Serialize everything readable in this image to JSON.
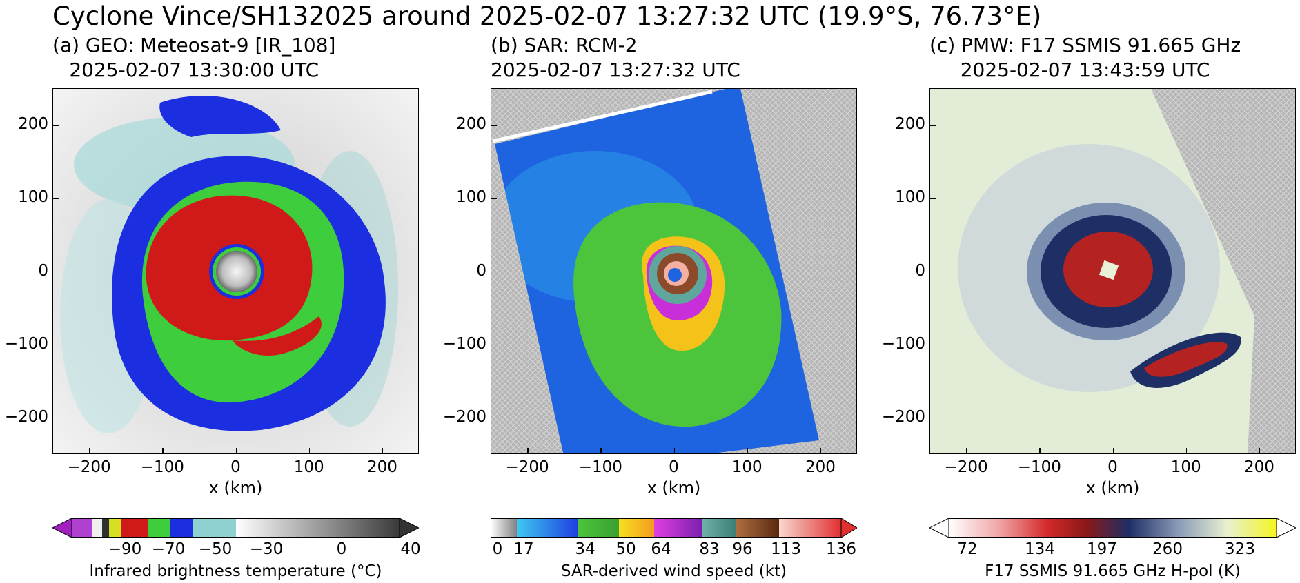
{
  "title": "Cyclone Vince/SH132025 around 2025-02-07 13:27:32 UTC (19.9°S, 76.73°E)",
  "panels": [
    {
      "label_line1": "(a) GEO: Meteosat-9 [IR_108]",
      "label_line2": "2025-02-07 13:30:00 UTC",
      "xlabel": "x (km)",
      "cbar_label": "Infrared brightness temperature (°C)",
      "cbar_ticks": [
        "−90",
        "−70",
        "−50",
        "−30",
        "0",
        "40"
      ]
    },
    {
      "label_line1": "(b) SAR: RCM-2",
      "label_line2": "2025-02-07 13:27:32 UTC",
      "xlabel": "x (km)",
      "cbar_label": "SAR-derived wind speed (kt)",
      "cbar_ticks": [
        "0",
        "17",
        "34",
        "50",
        "64",
        "83",
        "96",
        "113",
        "136"
      ]
    },
    {
      "label_line1": "(c) PMW: F17 SSMIS 91.665 GHz",
      "label_line2": "2025-02-07 13:43:59 UTC",
      "xlabel": "x (km)",
      "cbar_label": "F17 SSMIS 91.665 GHz H-pol (K)",
      "cbar_ticks": [
        "72",
        "134",
        "197",
        "260",
        "323"
      ]
    }
  ],
  "axes": {
    "x_ticks": [
      "−200",
      "−100",
      "0",
      "100",
      "200"
    ],
    "y_ticks": [
      "200",
      "100",
      "0",
      "−100",
      "−200"
    ]
  }
}
